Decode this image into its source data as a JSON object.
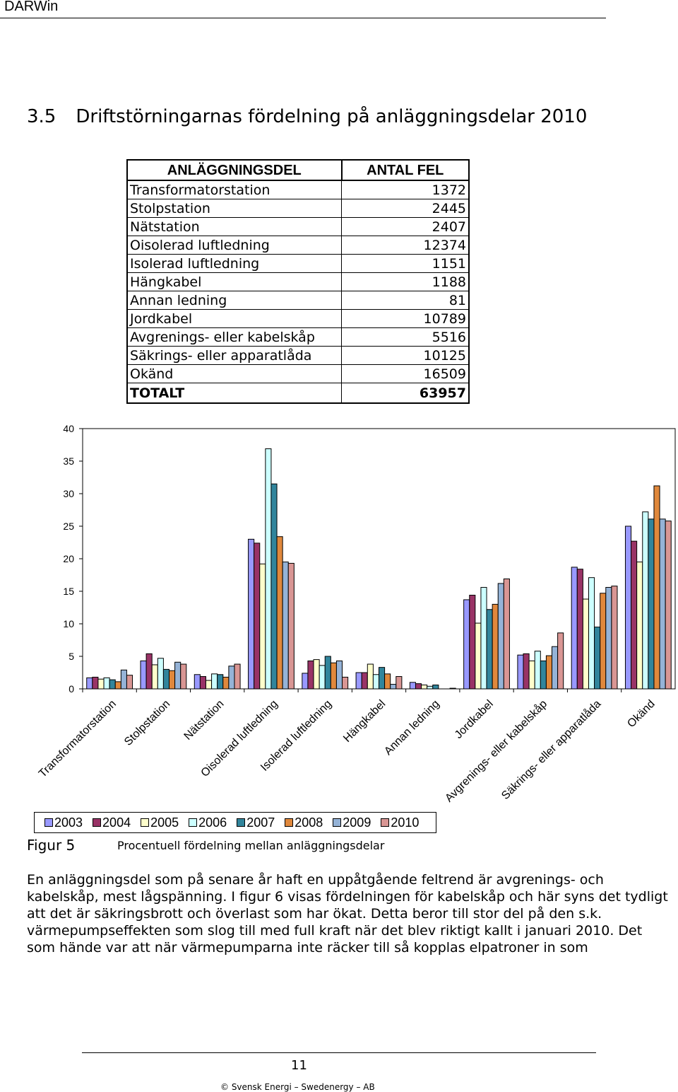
{
  "header": {
    "title": "DARWin"
  },
  "section": {
    "number": "3.5",
    "title": "Driftstörningarnas fördelning på anläggningsdelar 2010"
  },
  "table": {
    "headers": [
      "ANLÄGGNINGSDEL",
      "ANTAL FEL"
    ],
    "rows": [
      {
        "name": "Transformatorstation",
        "value": "1372"
      },
      {
        "name": "Stolpstation",
        "value": "2445"
      },
      {
        "name": "Nätstation",
        "value": "2407"
      },
      {
        "name": "Oisolerad luftledning",
        "value": "12374"
      },
      {
        "name": "Isolerad luftledning",
        "value": "1151"
      },
      {
        "name": "Hängkabel",
        "value": "1188"
      },
      {
        "name": "Annan ledning",
        "value": "81"
      },
      {
        "name": "Jordkabel",
        "value": "10789"
      },
      {
        "name": "Avgrenings- eller kabelskåp",
        "value": "5516"
      },
      {
        "name": "Säkrings- eller apparatlåda",
        "value": "10125"
      },
      {
        "name": "Okänd",
        "value": "16509"
      }
    ],
    "total": {
      "name": "TOTALT",
      "value": "63957"
    }
  },
  "chart_data": {
    "type": "bar",
    "title": "",
    "xlabel": "",
    "ylabel": "",
    "ylim": [
      0,
      40
    ],
    "yticks": [
      0,
      5,
      10,
      15,
      20,
      25,
      30,
      35,
      40
    ],
    "categories": [
      "Transformatorstation",
      "Stolpstation",
      "Nätstation",
      "Oisolerad luftledning",
      "Isolerad luftledning",
      "Hängkabel",
      "Annan ledning",
      "Jordkabel",
      "Avgrenings- eller kabelskåp",
      "Säkrings- eller apparatlåda",
      "Okänd"
    ],
    "series": [
      {
        "name": "2003",
        "color": "#9999ff",
        "values": [
          1.7,
          4.3,
          2.2,
          23.0,
          2.4,
          2.5,
          1.0,
          13.7,
          5.2,
          18.7,
          25.0
        ]
      },
      {
        "name": "2004",
        "color": "#993366",
        "values": [
          1.8,
          5.4,
          1.9,
          22.4,
          4.3,
          2.5,
          0.8,
          14.4,
          5.4,
          18.4,
          22.7
        ]
      },
      {
        "name": "2005",
        "color": "#ffffcc",
        "values": [
          1.5,
          3.7,
          1.3,
          19.2,
          4.5,
          3.8,
          0.6,
          10.1,
          4.3,
          13.8,
          19.5
        ]
      },
      {
        "name": "2006",
        "color": "#ccffff",
        "values": [
          1.7,
          4.7,
          2.3,
          36.9,
          3.6,
          2.2,
          0.4,
          15.6,
          5.8,
          17.1,
          27.2
        ]
      },
      {
        "name": "2007",
        "color": "#31859c",
        "values": [
          1.4,
          3.0,
          2.2,
          31.5,
          5.0,
          3.3,
          0.6,
          12.2,
          4.3,
          9.5,
          26.1
        ]
      },
      {
        "name": "2008",
        "color": "#e0883c",
        "values": [
          1.1,
          2.8,
          1.8,
          23.4,
          4.0,
          2.3,
          0.0,
          13.0,
          5.1,
          14.7,
          31.2
        ]
      },
      {
        "name": "2009",
        "color": "#95b3d7",
        "values": [
          2.9,
          4.1,
          3.5,
          19.5,
          4.3,
          0.7,
          0.0,
          16.2,
          6.5,
          15.6,
          26.1
        ]
      },
      {
        "name": "2010",
        "color": "#d99694",
        "values": [
          2.1,
          3.8,
          3.8,
          19.3,
          1.8,
          1.9,
          0.1,
          16.9,
          8.6,
          15.8,
          25.8
        ]
      }
    ]
  },
  "figure": {
    "label": "Figur 5",
    "caption": "Procentuell fördelning mellan anläggningsdelar"
  },
  "body": {
    "paragraph": "En anläggningsdel som på senare år haft en uppåtgående feltrend är avgrenings- och kabelskåp, mest lågspänning. I figur 6 visas fördelningen för kabelskåp och här syns det tydligt att det är säkringsbrott och överlast som har ökat. Detta beror till stor del på den s.k. värmepumpseffekten som slog till med full kraft när det blev riktigt kallt i januari 2010. Det som hände var att när värmepumparna inte räcker till så kopplas elpatroner in som"
  },
  "footer": {
    "page_number": "11",
    "copyright": "© Svensk Energi – Swedenergy – AB"
  }
}
